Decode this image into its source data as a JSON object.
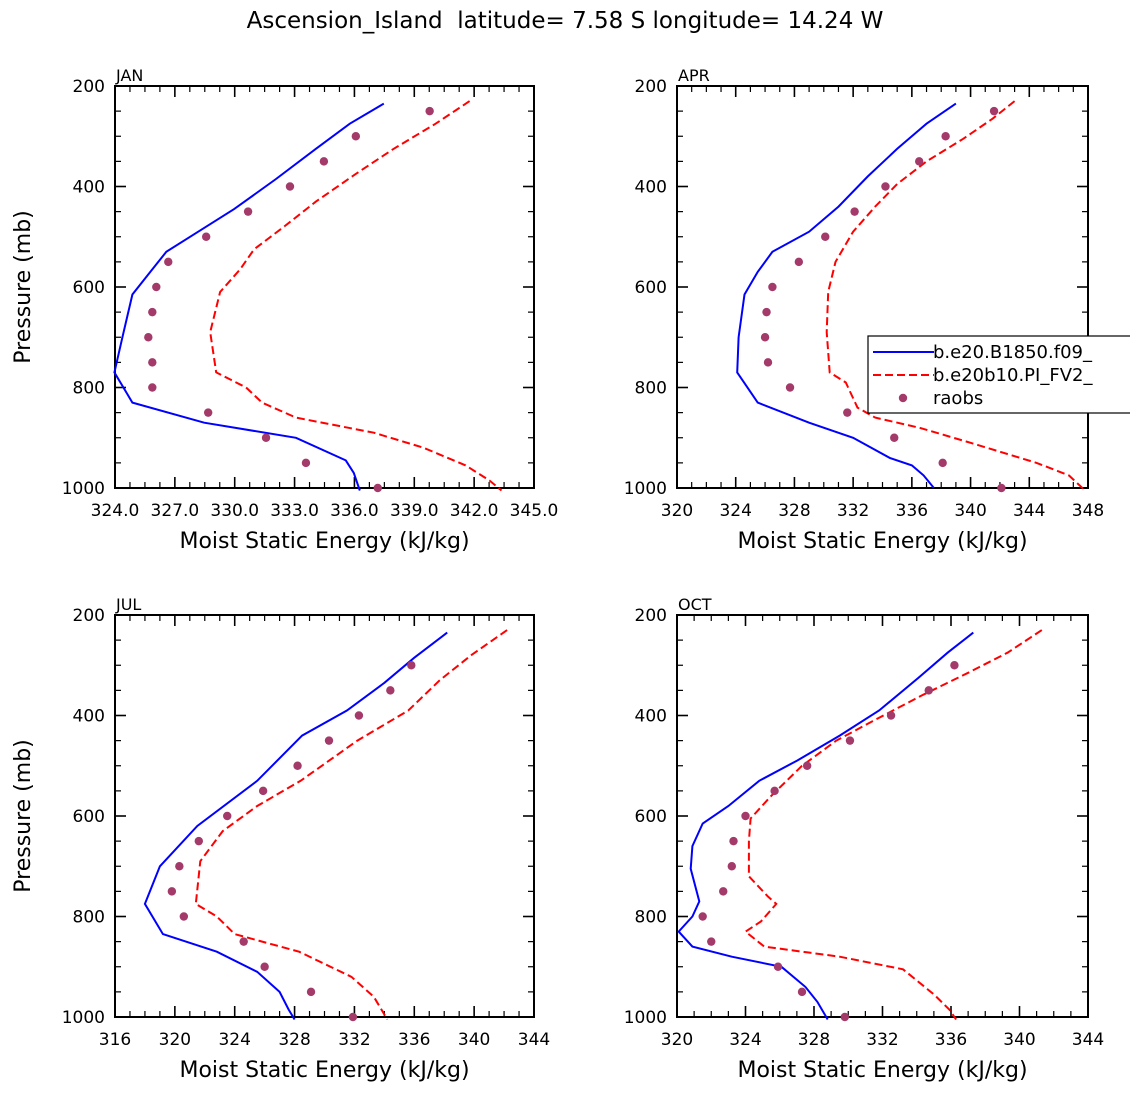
{
  "title": "Ascension_Island  latitude= 7.58 S longitude= 14.24 W",
  "colors": {
    "model1": "#0000ff",
    "model2": "#ff0000",
    "obs": "#a33a6a",
    "axis": "#000000"
  },
  "legend": [
    {
      "key": "model1",
      "label": "b.e20.B1850.f09_",
      "style": "solid-line"
    },
    {
      "key": "model2",
      "label": "b.e20b10.PI_FV2_",
      "style": "dashed-line"
    },
    {
      "key": "obs",
      "label": "raobs",
      "style": "marker"
    }
  ],
  "chart_data": [
    {
      "type": "line",
      "title": "JAN",
      "xlabel": "Moist Static Energy (kJ/kg)",
      "ylabel": "Pressure (mb)",
      "xlim": [
        324.03,
        345.03
      ],
      "ylim": [
        1000,
        200
      ],
      "xticks": [
        324.03,
        327.03,
        330.03,
        333.03,
        336.03,
        339.03,
        342.03,
        345.03
      ],
      "xtick_labels": [
        "324.0",
        "327.0",
        "330.0",
        "333.0",
        "336.0",
        "339.0",
        "342.0",
        "345.0"
      ],
      "yticks": [
        200,
        400,
        600,
        800,
        1000
      ],
      "ytick_labels": [
        "200",
        "400",
        "600",
        "800",
        "1000"
      ],
      "series": [
        {
          "name": "b.e20.B1850.f09_",
          "key": "model1",
          "points": [
            [
              337.5,
              235
            ],
            [
              335.8,
              275
            ],
            [
              334.1,
              325
            ],
            [
              332.1,
              385
            ],
            [
              330.0,
              445
            ],
            [
              328.2,
              490
            ],
            [
              326.6,
              530
            ],
            [
              325.8,
              570
            ],
            [
              324.9,
              615
            ],
            [
              324.4,
              700
            ],
            [
              324.0,
              770
            ],
            [
              324.9,
              830
            ],
            [
              328.5,
              870
            ],
            [
              333.1,
              900
            ],
            [
              335.6,
              945
            ],
            [
              336.0,
              970
            ],
            [
              336.3,
              1005
            ]
          ]
        },
        {
          "name": "b.e20b10.PI_FV2_",
          "key": "model2",
          "points": [
            [
              341.8,
              230
            ],
            [
              340.1,
              275
            ],
            [
              338.0,
              325
            ],
            [
              336.1,
              375
            ],
            [
              334.1,
              430
            ],
            [
              332.5,
              480
            ],
            [
              331.0,
              525
            ],
            [
              330.3,
              565
            ],
            [
              329.3,
              610
            ],
            [
              328.8,
              690
            ],
            [
              329.1,
              770
            ],
            [
              330.6,
              800
            ],
            [
              331.4,
              830
            ],
            [
              333.1,
              860
            ],
            [
              337.0,
              890
            ],
            [
              339.5,
              920
            ],
            [
              341.6,
              955
            ],
            [
              342.8,
              985
            ],
            [
              343.4,
              1005
            ]
          ]
        },
        {
          "name": "raobs",
          "key": "obs",
          "marker": "dot",
          "points": [
            [
              339.8,
              250
            ],
            [
              336.1,
              300
            ],
            [
              334.5,
              350
            ],
            [
              332.8,
              400
            ],
            [
              330.7,
              450
            ],
            [
              328.6,
              500
            ],
            [
              326.7,
              550
            ],
            [
              326.1,
              600
            ],
            [
              325.9,
              650
            ],
            [
              325.7,
              700
            ],
            [
              325.9,
              750
            ],
            [
              325.9,
              800
            ],
            [
              328.7,
              850
            ],
            [
              331.6,
              900
            ],
            [
              333.6,
              950
            ],
            [
              337.2,
              1000
            ]
          ]
        }
      ]
    },
    {
      "type": "line",
      "title": "APR",
      "xlabel": "Moist Static Energy (kJ/kg)",
      "ylabel": "",
      "xlim": [
        320,
        348
      ],
      "ylim": [
        1000,
        200
      ],
      "xticks": [
        320,
        324,
        328,
        332,
        336,
        340,
        344,
        348
      ],
      "xtick_labels": [
        "320",
        "324",
        "328",
        "332",
        "336",
        "340",
        "344",
        "348"
      ],
      "yticks": [
        200,
        400,
        600,
        800,
        1000
      ],
      "ytick_labels": [
        "200",
        "400",
        "600",
        "800",
        "1000"
      ],
      "series": [
        {
          "name": "b.e20.B1850.f09_",
          "key": "model1",
          "points": [
            [
              339.0,
              235
            ],
            [
              337.0,
              275
            ],
            [
              335.0,
              325
            ],
            [
              333.0,
              380
            ],
            [
              331.0,
              440
            ],
            [
              329.0,
              490
            ],
            [
              326.5,
              530
            ],
            [
              325.5,
              570
            ],
            [
              324.6,
              615
            ],
            [
              324.2,
              700
            ],
            [
              324.1,
              770
            ],
            [
              325.5,
              830
            ],
            [
              329.0,
              870
            ],
            [
              332.0,
              900
            ],
            [
              334.5,
              940
            ],
            [
              336.0,
              955
            ],
            [
              336.8,
              975
            ],
            [
              337.5,
              1000
            ]
          ]
        },
        {
          "name": "b.e20b10.PI_FV2_",
          "key": "model2",
          "points": [
            [
              343.0,
              230
            ],
            [
              341.5,
              265
            ],
            [
              339.5,
              305
            ],
            [
              337.0,
              350
            ],
            [
              335.0,
              395
            ],
            [
              333.5,
              440
            ],
            [
              332.0,
              490
            ],
            [
              330.8,
              550
            ],
            [
              330.3,
              610
            ],
            [
              330.2,
              690
            ],
            [
              330.4,
              770
            ],
            [
              331.5,
              790
            ],
            [
              332.3,
              840
            ],
            [
              333.5,
              860
            ],
            [
              336.5,
              880
            ],
            [
              340.0,
              910
            ],
            [
              344.5,
              950
            ],
            [
              346.7,
              975
            ],
            [
              347.8,
              1005
            ]
          ]
        },
        {
          "name": "raobs",
          "key": "obs",
          "marker": "dot",
          "points": [
            [
              341.6,
              250
            ],
            [
              338.3,
              300
            ],
            [
              336.5,
              350
            ],
            [
              334.2,
              400
            ],
            [
              332.1,
              450
            ],
            [
              330.1,
              500
            ],
            [
              328.3,
              550
            ],
            [
              326.5,
              600
            ],
            [
              326.1,
              650
            ],
            [
              326.0,
              700
            ],
            [
              326.2,
              750
            ],
            [
              327.7,
              800
            ],
            [
              331.6,
              850
            ],
            [
              334.8,
              900
            ],
            [
              338.1,
              950
            ],
            [
              342.1,
              1000
            ]
          ]
        }
      ]
    },
    {
      "type": "line",
      "title": "JUL",
      "xlabel": "Moist Static Energy (kJ/kg)",
      "ylabel": "Pressure (mb)",
      "xlim": [
        316,
        344
      ],
      "ylim": [
        1000,
        200
      ],
      "xticks": [
        316,
        320,
        324,
        328,
        332,
        336,
        340,
        344
      ],
      "xtick_labels": [
        "316",
        "320",
        "324",
        "328",
        "332",
        "336",
        "340",
        "344"
      ],
      "yticks": [
        200,
        400,
        600,
        800,
        1000
      ],
      "ytick_labels": [
        "200",
        "400",
        "600",
        "800",
        "1000"
      ],
      "series": [
        {
          "name": "b.e20.B1850.f09_",
          "key": "model1",
          "points": [
            [
              338.2,
              235
            ],
            [
              336.0,
              285
            ],
            [
              334.0,
              335
            ],
            [
              331.5,
              390
            ],
            [
              328.5,
              440
            ],
            [
              325.5,
              530
            ],
            [
              321.5,
              620
            ],
            [
              319.0,
              700
            ],
            [
              318.0,
              775
            ],
            [
              319.2,
              835
            ],
            [
              322.8,
              870
            ],
            [
              325.5,
              910
            ],
            [
              327.0,
              950
            ],
            [
              327.6,
              985
            ],
            [
              328.0,
              1005
            ]
          ]
        },
        {
          "name": "b.e20b10.PI_FV2_",
          "key": "model2",
          "points": [
            [
              342.2,
              230
            ],
            [
              339.8,
              280
            ],
            [
              337.7,
              330
            ],
            [
              335.6,
              390
            ],
            [
              332.2,
              450
            ],
            [
              328.4,
              530
            ],
            [
              325.5,
              580
            ],
            [
              323.2,
              630
            ],
            [
              321.7,
              690
            ],
            [
              321.4,
              775
            ],
            [
              322.8,
              800
            ],
            [
              324.0,
              835
            ],
            [
              328.3,
              870
            ],
            [
              331.8,
              920
            ],
            [
              333.3,
              960
            ],
            [
              333.9,
              990
            ],
            [
              334.2,
              1005
            ]
          ]
        },
        {
          "name": "raobs",
          "key": "obs",
          "marker": "dot",
          "points": [
            [
              335.8,
              300
            ],
            [
              334.4,
              350
            ],
            [
              332.3,
              400
            ],
            [
              330.3,
              450
            ],
            [
              328.2,
              500
            ],
            [
              325.9,
              550
            ],
            [
              323.5,
              600
            ],
            [
              321.6,
              650
            ],
            [
              320.3,
              700
            ],
            [
              319.8,
              750
            ],
            [
              320.6,
              800
            ],
            [
              324.6,
              850
            ],
            [
              326.0,
              900
            ],
            [
              329.1,
              950
            ],
            [
              331.9,
              1000
            ]
          ]
        }
      ]
    },
    {
      "type": "line",
      "title": "OCT",
      "xlabel": "Moist Static Energy (kJ/kg)",
      "ylabel": "",
      "xlim": [
        320,
        344
      ],
      "ylim": [
        1000,
        200
      ],
      "xticks": [
        320,
        324,
        328,
        332,
        336,
        340,
        344
      ],
      "xtick_labels": [
        "320",
        "324",
        "328",
        "332",
        "336",
        "340",
        "344"
      ],
      "yticks": [
        200,
        400,
        600,
        800,
        1000
      ],
      "ytick_labels": [
        "200",
        "400",
        "600",
        "800",
        "1000"
      ],
      "series": [
        {
          "name": "b.e20.B1850.f09_",
          "key": "model1",
          "points": [
            [
              337.3,
              235
            ],
            [
              335.8,
              275
            ],
            [
              334.1,
              325
            ],
            [
              331.8,
              390
            ],
            [
              329.5,
              440
            ],
            [
              327.0,
              490
            ],
            [
              324.8,
              530
            ],
            [
              323.0,
              580
            ],
            [
              321.5,
              615
            ],
            [
              320.9,
              660
            ],
            [
              320.8,
              705
            ],
            [
              321.3,
              770
            ],
            [
              320.9,
              800
            ],
            [
              320.1,
              830
            ],
            [
              320.9,
              860
            ],
            [
              323.2,
              880
            ],
            [
              326.1,
              900
            ],
            [
              327.5,
              940
            ],
            [
              328.2,
              970
            ],
            [
              328.8,
              1005
            ]
          ]
        },
        {
          "name": "b.e20b10.PI_FV2_",
          "key": "model2",
          "points": [
            [
              341.3,
              230
            ],
            [
              339.3,
              275
            ],
            [
              337.0,
              315
            ],
            [
              334.3,
              360
            ],
            [
              331.5,
              410
            ],
            [
              329.3,
              450
            ],
            [
              327.3,
              500
            ],
            [
              325.5,
              560
            ],
            [
              324.3,
              605
            ],
            [
              324.2,
              650
            ],
            [
              324.2,
              720
            ],
            [
              325.3,
              760
            ],
            [
              325.8,
              775
            ],
            [
              324.9,
              810
            ],
            [
              324.0,
              830
            ],
            [
              325.1,
              860
            ],
            [
              329.5,
              880
            ],
            [
              333.2,
              905
            ],
            [
              335.0,
              955
            ],
            [
              335.9,
              985
            ],
            [
              336.3,
              1005
            ]
          ]
        },
        {
          "name": "raobs",
          "key": "obs",
          "marker": "dot",
          "points": [
            [
              336.2,
              300
            ],
            [
              334.7,
              350
            ],
            [
              332.5,
              400
            ],
            [
              330.1,
              450
            ],
            [
              327.6,
              500
            ],
            [
              325.7,
              550
            ],
            [
              324.0,
              600
            ],
            [
              323.3,
              650
            ],
            [
              323.2,
              700
            ],
            [
              322.7,
              750
            ],
            [
              321.5,
              800
            ],
            [
              322.0,
              850
            ],
            [
              325.9,
              900
            ],
            [
              327.3,
              950
            ],
            [
              329.8,
              1000
            ]
          ]
        }
      ]
    }
  ]
}
